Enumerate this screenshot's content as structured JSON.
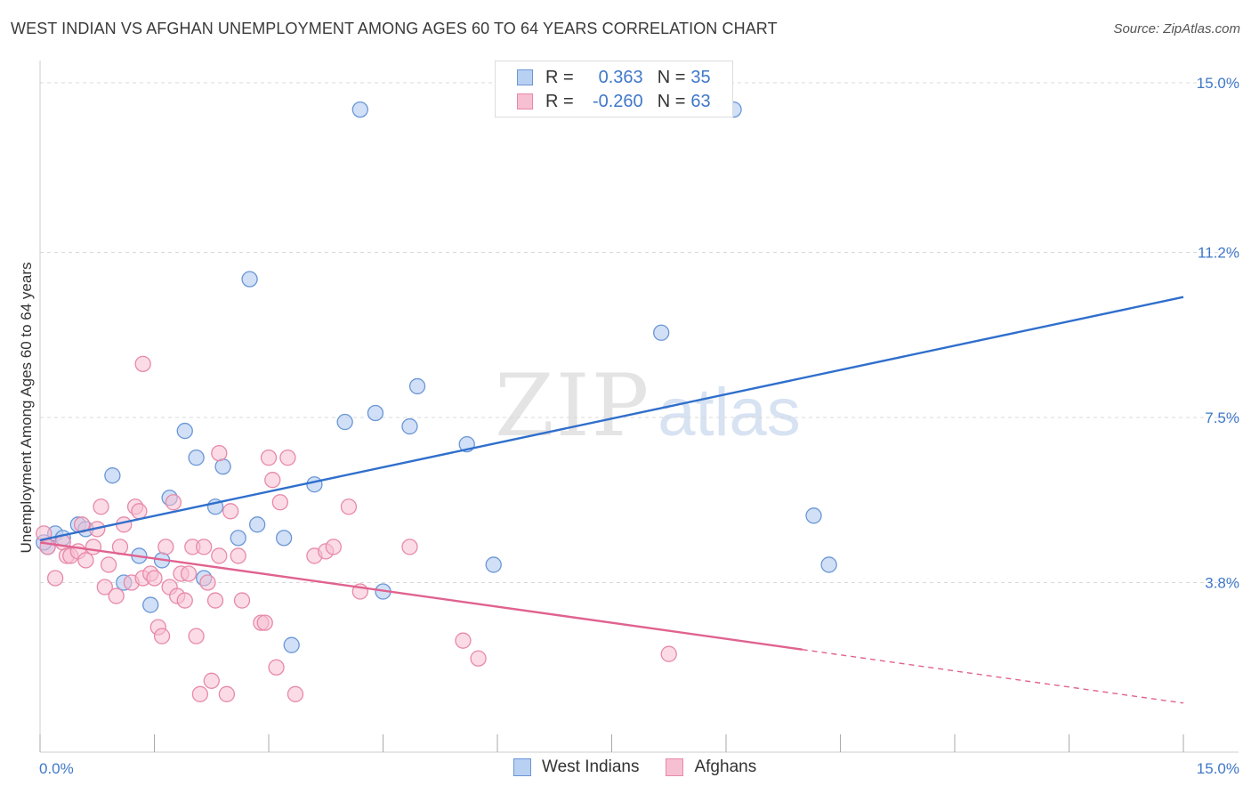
{
  "header": {
    "title": "WEST INDIAN VS AFGHAN UNEMPLOYMENT AMONG AGES 60 TO 64 YEARS CORRELATION CHART",
    "source": "Source: ZipAtlas.com"
  },
  "watermark": {
    "zip": "ZIP",
    "atlas": "atlas"
  },
  "legend": {
    "rows": [
      {
        "r_label": "R =",
        "r_value": "0.363",
        "n_label": "N =",
        "n_value": "35"
      },
      {
        "r_label": "R =",
        "r_value": "-0.260",
        "n_label": "N =",
        "n_value": "63"
      }
    ]
  },
  "colors": {
    "west_indians_fill": "#b8d0f2",
    "west_indians_stroke": "#6a96d6",
    "west_indians_line": "#2f6fcc",
    "afghans_fill": "#f7c0d2",
    "afghans_stroke": "#e889a8",
    "afghans_line": "#e0628f",
    "axis_label": "#3f78c9",
    "grid": "#d8d8d8"
  },
  "chart_data": {
    "type": "scatter",
    "title": "WEST INDIAN VS AFGHAN UNEMPLOYMENT AMONG AGES 60 TO 64 YEARS CORRELATION CHART",
    "xlabel": "",
    "ylabel": "Unemployment Among Ages 60 to 64 years",
    "xlim": [
      0,
      15
    ],
    "ylim": [
      0,
      15.3
    ],
    "x_tick_labels": [
      "0.0%",
      "15.0%"
    ],
    "y_ticks": [
      3.8,
      7.5,
      11.2,
      15.0
    ],
    "y_tick_labels": [
      "3.8%",
      "7.5%",
      "11.2%",
      "15.0%"
    ],
    "grid": true,
    "legend_position": "bottom-center",
    "series": [
      {
        "name": "West Indians",
        "r": 0.363,
        "n": 35,
        "trend": {
          "x": [
            0,
            15
          ],
          "y": [
            4.75,
            10.2
          ]
        },
        "points": [
          [
            0.1,
            4.6
          ],
          [
            0.2,
            4.9
          ],
          [
            0.3,
            4.8
          ],
          [
            0.5,
            5.1
          ],
          [
            0.6,
            5.0
          ],
          [
            0.95,
            6.2
          ],
          [
            1.1,
            3.8
          ],
          [
            1.3,
            4.4
          ],
          [
            1.45,
            3.3
          ],
          [
            1.6,
            4.3
          ],
          [
            1.7,
            5.7
          ],
          [
            1.9,
            7.2
          ],
          [
            2.05,
            6.6
          ],
          [
            2.15,
            3.9
          ],
          [
            2.3,
            5.5
          ],
          [
            2.4,
            6.4
          ],
          [
            2.6,
            4.8
          ],
          [
            2.75,
            10.6
          ],
          [
            2.85,
            5.1
          ],
          [
            3.2,
            4.8
          ],
          [
            3.3,
            2.4
          ],
          [
            3.6,
            6.0
          ],
          [
            4.0,
            7.4
          ],
          [
            4.2,
            14.4
          ],
          [
            4.4,
            7.6
          ],
          [
            4.5,
            3.6
          ],
          [
            4.85,
            7.3
          ],
          [
            4.95,
            8.2
          ],
          [
            5.6,
            6.9
          ],
          [
            5.95,
            4.2
          ],
          [
            8.15,
            9.4
          ],
          [
            9.1,
            14.4
          ],
          [
            10.15,
            5.3
          ],
          [
            10.35,
            4.2
          ],
          [
            0.05,
            4.7
          ]
        ]
      },
      {
        "name": "Afghans",
        "r": -0.26,
        "n": 63,
        "trend": {
          "x": [
            0,
            10.0
          ],
          "y": [
            4.7,
            2.3
          ]
        },
        "trend_dashed": {
          "x": [
            10.0,
            15
          ],
          "y": [
            2.3,
            1.1
          ]
        },
        "points": [
          [
            0.05,
            4.9
          ],
          [
            0.1,
            4.6
          ],
          [
            0.2,
            3.9
          ],
          [
            0.3,
            4.7
          ],
          [
            0.35,
            4.4
          ],
          [
            0.4,
            4.4
          ],
          [
            0.5,
            4.5
          ],
          [
            0.55,
            5.1
          ],
          [
            0.6,
            4.3
          ],
          [
            0.7,
            4.6
          ],
          [
            0.75,
            5.0
          ],
          [
            0.8,
            5.5
          ],
          [
            0.85,
            3.7
          ],
          [
            0.9,
            4.2
          ],
          [
            1.0,
            3.5
          ],
          [
            1.05,
            4.6
          ],
          [
            1.1,
            5.1
          ],
          [
            1.2,
            3.8
          ],
          [
            1.25,
            5.5
          ],
          [
            1.3,
            5.4
          ],
          [
            1.35,
            3.9
          ],
          [
            1.45,
            4.0
          ],
          [
            1.5,
            3.9
          ],
          [
            1.55,
            2.8
          ],
          [
            1.6,
            2.6
          ],
          [
            1.65,
            4.6
          ],
          [
            1.7,
            3.7
          ],
          [
            1.75,
            5.6
          ],
          [
            1.8,
            3.5
          ],
          [
            1.85,
            4.0
          ],
          [
            1.9,
            3.4
          ],
          [
            1.95,
            4.0
          ],
          [
            2.0,
            4.6
          ],
          [
            2.05,
            2.6
          ],
          [
            2.1,
            1.3
          ],
          [
            2.15,
            4.6
          ],
          [
            2.2,
            3.8
          ],
          [
            2.25,
            1.6
          ],
          [
            2.3,
            3.4
          ],
          [
            2.35,
            4.4
          ],
          [
            2.45,
            1.3
          ],
          [
            2.5,
            5.4
          ],
          [
            2.6,
            4.4
          ],
          [
            2.65,
            3.4
          ],
          [
            2.9,
            2.9
          ],
          [
            2.95,
            2.9
          ],
          [
            3.0,
            6.6
          ],
          [
            3.05,
            6.1
          ],
          [
            3.1,
            1.9
          ],
          [
            3.15,
            5.6
          ],
          [
            3.25,
            6.6
          ],
          [
            3.35,
            1.3
          ],
          [
            3.6,
            4.4
          ],
          [
            3.75,
            4.5
          ],
          [
            3.85,
            4.6
          ],
          [
            4.05,
            5.5
          ],
          [
            4.2,
            3.6
          ],
          [
            4.85,
            4.6
          ],
          [
            5.55,
            2.5
          ],
          [
            5.75,
            2.1
          ],
          [
            8.25,
            2.2
          ],
          [
            1.35,
            8.7
          ],
          [
            2.35,
            6.7
          ]
        ]
      }
    ]
  }
}
